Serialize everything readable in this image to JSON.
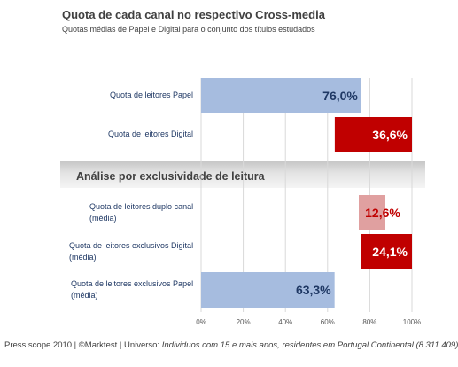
{
  "title": "Quota de cada canal no respectivo Cross-media",
  "subtitle": "Quotas médias de Papel e Digital para o conjunto dos títulos estudados",
  "section_heading": "Análise por exclusividade de leitura",
  "footer": {
    "source": "Press:scope 2010 | ©Marktest | Universo: ",
    "universe": "Individuos com 15 e mais anos, residentes em Portugal Continental (8 311 409)"
  },
  "colors": {
    "papel": "#a6bcdf",
    "digital": "#c00000",
    "duplo": "#e0a0a0",
    "label_dark": "#1f3864",
    "label_light": "#ffffff",
    "label_red": "#c00000"
  },
  "chart_data": {
    "type": "bar",
    "orientation": "horizontal",
    "title": "Quota de cada canal no respectivo Cross-media",
    "subtitle": "Quotas médias de Papel e Digital para o conjunto dos títulos estudados",
    "xlim": [
      0,
      100
    ],
    "xticks": [
      "0%",
      "20%",
      "40%",
      "60%",
      "80%",
      "100%"
    ],
    "grid": true,
    "bars": [
      {
        "label": [
          "Quota de leitores Papel"
        ],
        "value": 76.0,
        "display": "76,0%",
        "align": "left",
        "color": "papel",
        "text_color": "label_dark"
      },
      {
        "label": [
          "Quota de leitores Digital"
        ],
        "value": 36.6,
        "display": "36,6%",
        "align": "right",
        "color": "digital",
        "text_color": "label_light"
      },
      {
        "label": [
          "Quota de leitores duplo canal",
          "(média)"
        ],
        "value": 12.6,
        "display": "12,6%",
        "align": "center",
        "color": "duplo",
        "text_color": "label_red"
      },
      {
        "label": [
          "Quota de leitores exclusivos Digital",
          "(média)"
        ],
        "value": 24.1,
        "display": "24,1%",
        "align": "right",
        "color": "digital",
        "text_color": "label_light"
      },
      {
        "label": [
          "Quota de leitores exclusivos Papel",
          "(média)"
        ],
        "value": 63.3,
        "display": "63,3%",
        "align": "left",
        "color": "papel",
        "text_color": "label_dark"
      }
    ]
  }
}
